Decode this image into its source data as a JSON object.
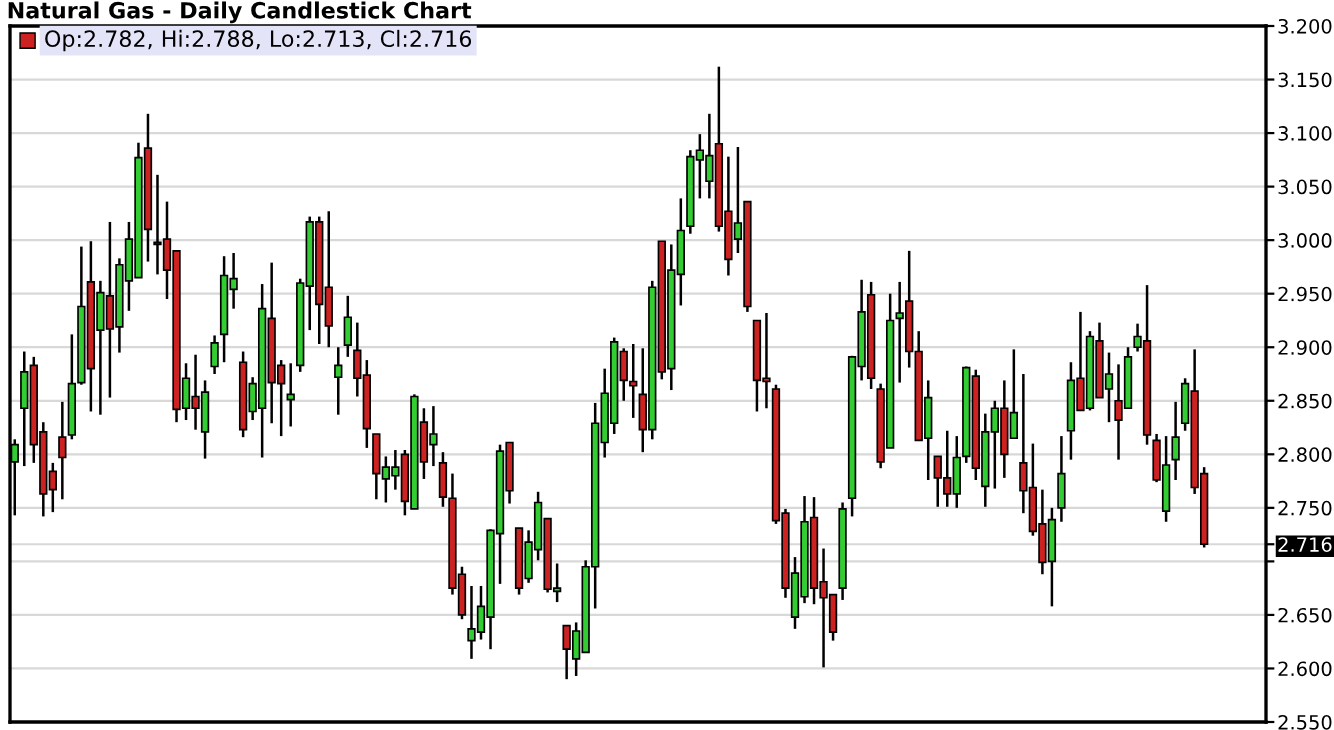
{
  "chart_data": {
    "type": "candlestick",
    "title": "Natural Gas - Daily Candlestick Chart",
    "annotations": [
      "Op:2.782, Hi:2.788, Lo:2.713, Cl:2.716"
    ],
    "categories": [
      null,
      null,
      null,
      null,
      null,
      null,
      null,
      null,
      null,
      null,
      null,
      null,
      null,
      null,
      null,
      null,
      null,
      null,
      null,
      null,
      null,
      null,
      null,
      null,
      null,
      null,
      null,
      null,
      null,
      null,
      null,
      null,
      null,
      null,
      null,
      null,
      null,
      null,
      null,
      null,
      null,
      null,
      null,
      null,
      null,
      null,
      null,
      null,
      null,
      null,
      null,
      null,
      null,
      null,
      null,
      null,
      null,
      null,
      null,
      null,
      null,
      null,
      null,
      null,
      null,
      null,
      null,
      null,
      null,
      null,
      null,
      null,
      null,
      null,
      null,
      null,
      null,
      null,
      null,
      null,
      null,
      null,
      null,
      null,
      null,
      null,
      null,
      null,
      null,
      null,
      null,
      null,
      null,
      null,
      null,
      null,
      null,
      null,
      null,
      null,
      null,
      null,
      null,
      null,
      null,
      null,
      null,
      null,
      null,
      null,
      null,
      null,
      null,
      null,
      null,
      null,
      null,
      null,
      null,
      null,
      null,
      null,
      null,
      null,
      null,
      null
    ],
    "ohlc": [
      [
        2.793,
        2.814,
        2.743,
        2.809
      ],
      [
        2.843,
        2.896,
        2.789,
        2.877
      ],
      [
        2.883,
        2.891,
        2.792,
        2.809
      ],
      [
        2.821,
        2.83,
        2.742,
        2.763
      ],
      [
        2.784,
        2.792,
        2.746,
        2.767
      ],
      [
        2.816,
        2.849,
        2.758,
        2.797
      ],
      [
        2.818,
        2.912,
        2.814,
        2.866
      ],
      [
        2.867,
        2.994,
        2.865,
        2.938
      ],
      [
        2.961,
        2.999,
        2.84,
        2.88
      ],
      [
        2.916,
        2.962,
        2.837,
        2.951
      ],
      [
        2.948,
        3.017,
        2.853,
        2.917
      ],
      [
        2.919,
        2.983,
        2.895,
        2.977
      ],
      [
        2.962,
        3.017,
        2.934,
        3.001
      ],
      [
        2.965,
        3.091,
        2.965,
        3.077
      ],
      [
        3.086,
        3.118,
        2.98,
        3.01
      ],
      [
        2.998,
        3.061,
        2.968,
        2.996
      ],
      [
        3.001,
        3.036,
        2.945,
        2.972
      ],
      [
        2.99,
        2.99,
        2.83,
        2.842
      ],
      [
        2.843,
        2.885,
        2.832,
        2.871
      ],
      [
        2.854,
        2.893,
        2.823,
        2.843
      ],
      [
        2.821,
        2.869,
        2.796,
        2.858
      ],
      [
        2.882,
        2.911,
        2.875,
        2.904
      ],
      [
        2.912,
        2.985,
        2.886,
        2.967
      ],
      [
        2.954,
        2.988,
        2.936,
        2.964
      ],
      [
        2.886,
        2.896,
        2.816,
        2.823
      ],
      [
        2.84,
        2.872,
        2.832,
        2.866
      ],
      [
        2.843,
        2.959,
        2.797,
        2.936
      ],
      [
        2.927,
        2.979,
        2.829,
        2.867
      ],
      [
        2.883,
        2.888,
        2.817,
        2.866
      ],
      [
        2.851,
        2.885,
        2.826,
        2.856
      ],
      [
        2.883,
        2.964,
        2.877,
        2.96
      ],
      [
        2.957,
        3.022,
        2.916,
        3.017
      ],
      [
        3.017,
        3.022,
        2.903,
        2.94
      ],
      [
        2.956,
        3.027,
        2.9,
        2.92
      ],
      [
        2.872,
        2.9,
        2.837,
        2.883
      ],
      [
        2.902,
        2.948,
        2.891,
        2.928
      ],
      [
        2.897,
        2.923,
        2.854,
        2.871
      ],
      [
        2.874,
        2.888,
        2.806,
        2.824
      ],
      [
        2.819,
        2.819,
        2.758,
        2.782
      ],
      [
        2.777,
        2.798,
        2.755,
        2.788
      ],
      [
        2.78,
        2.804,
        2.767,
        2.788
      ],
      [
        2.8,
        2.804,
        2.743,
        2.756
      ],
      [
        2.749,
        2.856,
        2.749,
        2.854
      ],
      [
        2.83,
        2.843,
        2.777,
        2.793
      ],
      [
        2.809,
        2.845,
        2.789,
        2.819
      ],
      [
        2.792,
        2.802,
        2.751,
        2.76
      ],
      [
        2.759,
        2.782,
        2.669,
        2.675
      ],
      [
        2.688,
        2.695,
        2.646,
        2.65
      ],
      [
        2.626,
        2.677,
        2.609,
        2.637
      ],
      [
        2.634,
        2.677,
        2.627,
        2.658
      ],
      [
        2.648,
        2.73,
        2.618,
        2.729
      ],
      [
        2.726,
        2.809,
        2.679,
        2.803
      ],
      [
        2.811,
        2.811,
        2.754,
        2.766
      ],
      [
        2.731,
        2.731,
        2.669,
        2.675
      ],
      [
        2.684,
        2.729,
        2.68,
        2.718
      ],
      [
        2.711,
        2.765,
        2.701,
        2.755
      ],
      [
        2.74,
        2.74,
        2.671,
        2.674
      ],
      [
        2.672,
        2.698,
        2.662,
        2.675
      ],
      [
        2.64,
        2.64,
        2.59,
        2.618
      ],
      [
        2.609,
        2.643,
        2.593,
        2.635
      ],
      [
        2.615,
        2.701,
        2.615,
        2.695
      ],
      [
        2.695,
        2.848,
        2.656,
        2.829
      ],
      [
        2.811,
        2.88,
        2.797,
        2.857
      ],
      [
        2.829,
        2.909,
        2.819,
        2.905
      ],
      [
        2.896,
        2.899,
        2.85,
        2.869
      ],
      [
        2.868,
        2.903,
        2.834,
        2.864
      ],
      [
        2.856,
        2.899,
        2.802,
        2.823
      ],
      [
        2.823,
        2.962,
        2.814,
        2.956
      ],
      [
        2.999,
        2.999,
        2.87,
        2.877
      ],
      [
        2.88,
        2.996,
        2.86,
        2.972
      ],
      [
        2.968,
        3.039,
        2.939,
        3.009
      ],
      [
        3.013,
        3.084,
        3.006,
        3.078
      ],
      [
        3.075,
        3.099,
        3.039,
        3.084
      ],
      [
        3.055,
        3.118,
        3.039,
        3.079
      ],
      [
        3.09,
        3.162,
        3.008,
        3.013
      ],
      [
        3.027,
        3.078,
        2.967,
        2.982
      ],
      [
        3.001,
        3.087,
        2.988,
        3.016
      ],
      [
        3.036,
        3.036,
        2.933,
        2.938
      ],
      [
        2.925,
        2.925,
        2.84,
        2.869
      ],
      [
        2.871,
        2.932,
        2.843,
        2.868
      ],
      [
        2.861,
        2.865,
        2.735,
        2.738
      ],
      [
        2.745,
        2.749,
        2.666,
        2.675
      ],
      [
        2.648,
        2.704,
        2.637,
        2.689
      ],
      [
        2.667,
        2.761,
        2.661,
        2.737
      ],
      [
        2.741,
        2.76,
        2.66,
        2.675
      ],
      [
        2.681,
        2.712,
        2.601,
        2.666
      ],
      [
        2.669,
        2.669,
        2.626,
        2.634
      ],
      [
        2.675,
        2.755,
        2.664,
        2.749
      ],
      [
        2.759,
        2.892,
        2.742,
        2.891
      ],
      [
        2.882,
        2.963,
        2.869,
        2.933
      ],
      [
        2.949,
        2.961,
        2.861,
        2.871
      ],
      [
        2.861,
        2.866,
        2.787,
        2.793
      ],
      [
        2.806,
        2.95,
        2.806,
        2.925
      ],
      [
        2.927,
        2.961,
        2.867,
        2.932
      ],
      [
        2.943,
        2.99,
        2.881,
        2.896
      ],
      [
        2.896,
        2.915,
        2.813,
        2.813
      ],
      [
        2.815,
        2.869,
        2.776,
        2.853
      ],
      [
        2.798,
        2.798,
        2.751,
        2.778
      ],
      [
        2.778,
        2.822,
        2.751,
        2.763
      ],
      [
        2.763,
        2.817,
        2.75,
        2.797
      ],
      [
        2.798,
        2.882,
        2.792,
        2.881
      ],
      [
        2.873,
        2.879,
        2.776,
        2.787
      ],
      [
        2.77,
        2.838,
        2.751,
        2.821
      ],
      [
        2.821,
        2.85,
        2.768,
        2.843
      ],
      [
        2.843,
        2.869,
        2.778,
        2.8
      ],
      [
        2.815,
        2.898,
        2.815,
        2.839
      ],
      [
        2.792,
        2.875,
        2.745,
        2.766
      ],
      [
        2.769,
        2.81,
        2.724,
        2.728
      ],
      [
        2.735,
        2.767,
        2.688,
        2.699
      ],
      [
        2.7,
        2.75,
        2.658,
        2.739
      ],
      [
        2.75,
        2.817,
        2.737,
        2.782
      ],
      [
        2.822,
        2.886,
        2.795,
        2.869
      ],
      [
        2.871,
        2.933,
        2.841,
        2.841
      ],
      [
        2.843,
        2.915,
        2.841,
        2.91
      ],
      [
        2.906,
        2.923,
        2.853,
        2.853
      ],
      [
        2.861,
        2.895,
        2.83,
        2.875
      ],
      [
        2.85,
        2.884,
        2.795,
        2.832
      ],
      [
        2.843,
        2.9,
        2.843,
        2.891
      ],
      [
        2.9,
        2.922,
        2.896,
        2.91
      ],
      [
        2.906,
        2.958,
        2.809,
        2.818
      ],
      [
        2.813,
        2.819,
        2.774,
        2.776
      ],
      [
        2.747,
        2.817,
        2.737,
        2.79
      ],
      [
        2.795,
        2.849,
        2.776,
        2.816
      ],
      [
        2.829,
        2.871,
        2.822,
        2.866
      ],
      [
        2.859,
        2.898,
        2.763,
        2.769
      ],
      [
        2.782,
        2.788,
        2.713,
        2.716
      ]
    ],
    "colors": [
      "#33cc33",
      "#33cc33",
      "#cc2222",
      "#cc2222",
      "#cc2222",
      "#cc2222",
      "#33cc33",
      "#33cc33",
      "#cc2222",
      "#33cc33",
      "#cc2222",
      "#33cc33",
      "#33cc33",
      "#33cc33",
      "#cc2222",
      "#cc2222",
      "#cc2222",
      "#cc2222",
      "#33cc33",
      "#cc2222",
      "#33cc33",
      "#33cc33",
      "#33cc33",
      "#33cc33",
      "#cc2222",
      "#33cc33",
      "#33cc33",
      "#cc2222",
      "#cc2222",
      "#33cc33",
      "#33cc33",
      "#33cc33",
      "#cc2222",
      "#cc2222",
      "#33cc33",
      "#33cc33",
      "#cc2222",
      "#cc2222",
      "#cc2222",
      "#33cc33",
      "#33cc33",
      "#cc2222",
      "#33cc33",
      "#cc2222",
      "#33cc33",
      "#cc2222",
      "#cc2222",
      "#cc2222",
      "#33cc33",
      "#33cc33",
      "#33cc33",
      "#33cc33",
      "#cc2222",
      "#cc2222",
      "#33cc33",
      "#33cc33",
      "#cc2222",
      "#33cc33",
      "#cc2222",
      "#33cc33",
      "#33cc33",
      "#33cc33",
      "#33cc33",
      "#33cc33",
      "#cc2222",
      "#cc2222",
      "#cc2222",
      "#33cc33",
      "#cc2222",
      "#33cc33",
      "#33cc33",
      "#33cc33",
      "#33cc33",
      "#33cc33",
      "#cc2222",
      "#cc2222",
      "#33cc33",
      "#cc2222",
      "#cc2222",
      "#cc2222",
      "#cc2222",
      "#cc2222",
      "#33cc33",
      "#33cc33",
      "#cc2222",
      "#cc2222",
      "#cc2222",
      "#33cc33",
      "#33cc33",
      "#33cc33",
      "#cc2222",
      "#cc2222",
      "#33cc33",
      "#33cc33",
      "#cc2222",
      "#cc2222",
      "#33cc33",
      "#cc2222",
      "#cc2222",
      "#33cc33",
      "#33cc33",
      "#cc2222",
      "#33cc33",
      "#33cc33",
      "#cc2222",
      "#33cc33",
      "#cc2222",
      "#cc2222",
      "#cc2222",
      "#33cc33",
      "#33cc33",
      "#33cc33",
      "#cc2222",
      "#33cc33",
      "#cc2222",
      "#33cc33",
      "#cc2222",
      "#33cc33",
      "#33cc33",
      "#cc2222",
      "#cc2222",
      "#33cc33",
      "#33cc33",
      "#33cc33",
      "#cc2222",
      "#cc2222"
    ],
    "ylim": [
      2.55,
      3.2
    ],
    "yticks": [
      {
        "value": 2.55,
        "label": "2.550"
      },
      {
        "value": 2.6,
        "label": "2.600"
      },
      {
        "value": 2.65,
        "label": "2.650"
      },
      {
        "value": 2.7,
        "label": null
      },
      {
        "value": 2.716,
        "label": "2.716"
      },
      {
        "value": 2.75,
        "label": "2.750"
      },
      {
        "value": 2.8,
        "label": "2.800"
      },
      {
        "value": 2.85,
        "label": "2.850"
      },
      {
        "value": 2.9,
        "label": "2.900"
      },
      {
        "value": 2.95,
        "label": "2.950"
      },
      {
        "value": 3.0,
        "label": "3.000"
      },
      {
        "value": 3.05,
        "label": "3.050"
      },
      {
        "value": 3.1,
        "label": "3.100"
      },
      {
        "value": 3.15,
        "label": "3.150"
      },
      {
        "value": 3.2,
        "label": "3.200"
      }
    ],
    "grid": "y",
    "tick_labels": "y"
  }
}
